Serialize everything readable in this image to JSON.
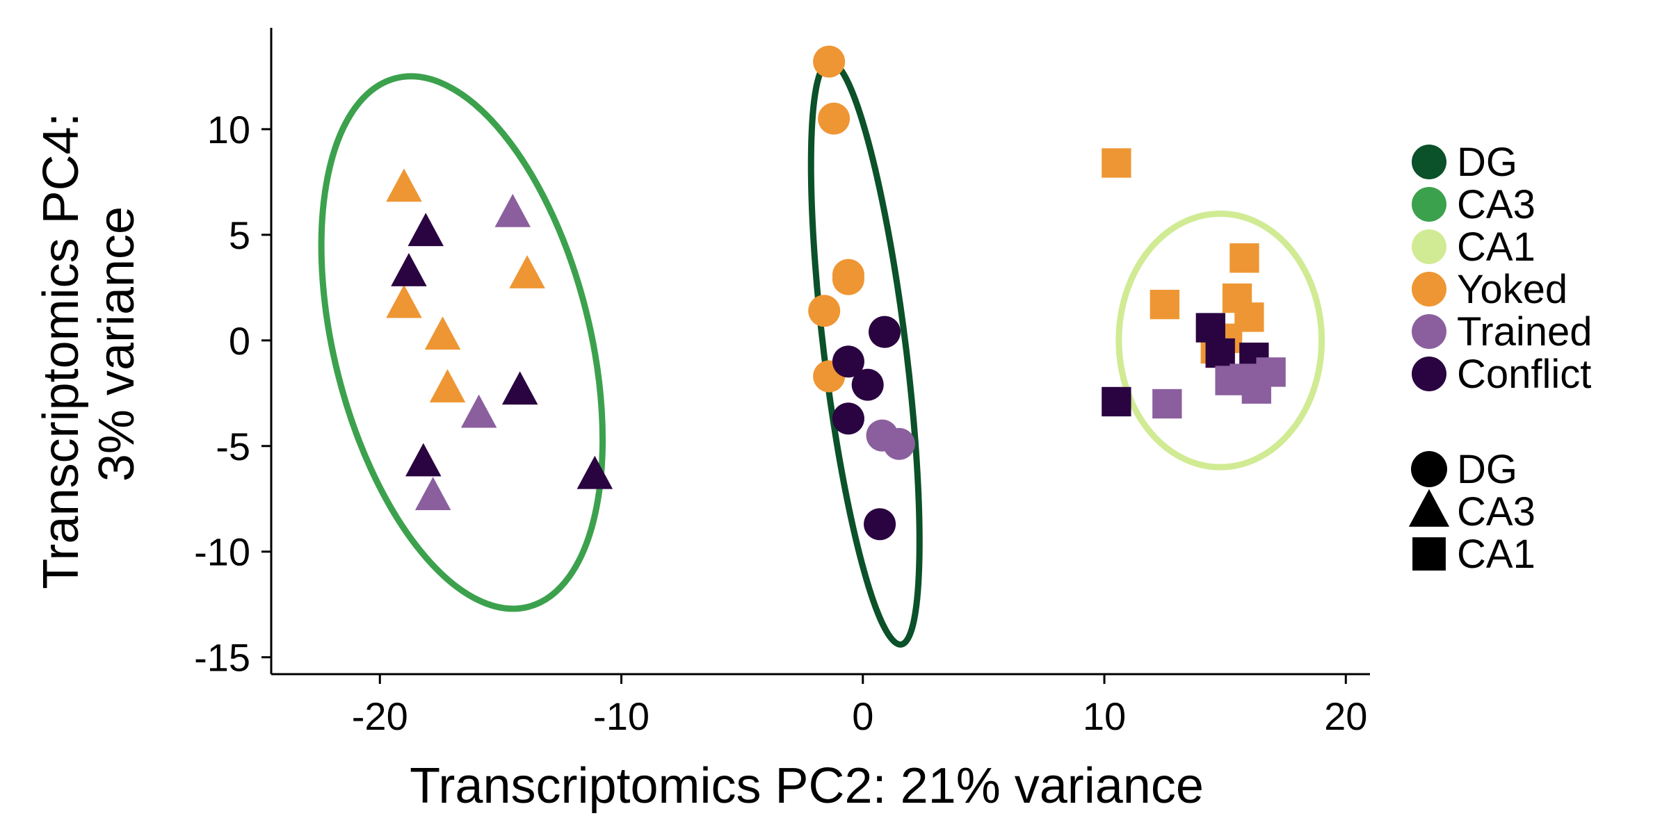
{
  "chart_data": {
    "type": "scatter",
    "title": "",
    "xlabel": "Transcriptomics PC2: 21% variance",
    "ylabel_lines": [
      "Transcriptomics PC4:",
      "3% variance"
    ],
    "xlim": [
      -24.5,
      21
    ],
    "ylim": [
      -15.8,
      14.8
    ],
    "xticks": [
      -20,
      -10,
      0,
      10,
      20
    ],
    "yticks": [
      10,
      5,
      0,
      -5,
      -10,
      -15
    ],
    "grid": false,
    "legend_position": "right",
    "colors": {
      "DG": "#0b5129",
      "CA3": "#3ca14d",
      "CA1": "#d0eb93",
      "Yoked": "#ee9633",
      "Trained": "#8b5f9e",
      "Conflict": "#2a0440"
    },
    "color_legend": [
      "DG",
      "CA3",
      "CA1",
      "Yoked",
      "Trained",
      "Conflict"
    ],
    "shape_legend": [
      {
        "label": "DG",
        "shape": "circle"
      },
      {
        "label": "CA3",
        "shape": "triangle"
      },
      {
        "label": "CA1",
        "shape": "square"
      }
    ],
    "ellipses": [
      {
        "group": "CA3",
        "cx": -16.6,
        "cy": -0.1,
        "rx": 5.3,
        "ry": 12.9,
        "angle_deg": -14
      },
      {
        "group": "DG",
        "cx": 0.1,
        "cy": -0.6,
        "rx": 1.7,
        "ry": 13.9,
        "angle_deg": -7
      },
      {
        "group": "CA1",
        "cx": 14.8,
        "cy": 0.0,
        "rx": 4.2,
        "ry": 6.0,
        "angle_deg": 0
      }
    ],
    "points": [
      {
        "x": -1.4,
        "y": 13.2,
        "group": "Yoked",
        "shape": "circle"
      },
      {
        "x": -1.2,
        "y": 10.5,
        "group": "Yoked",
        "shape": "circle"
      },
      {
        "x": -0.6,
        "y": 3.1,
        "group": "Yoked",
        "shape": "circle"
      },
      {
        "x": -0.6,
        "y": 2.9,
        "group": "Yoked",
        "shape": "circle"
      },
      {
        "x": -1.6,
        "y": 1.4,
        "group": "Yoked",
        "shape": "circle"
      },
      {
        "x": -1.4,
        "y": -1.7,
        "group": "Yoked",
        "shape": "circle"
      },
      {
        "x": 0.9,
        "y": 0.4,
        "group": "Conflict",
        "shape": "circle"
      },
      {
        "x": -0.6,
        "y": -1.0,
        "group": "Conflict",
        "shape": "circle"
      },
      {
        "x": 0.2,
        "y": -2.1,
        "group": "Conflict",
        "shape": "circle"
      },
      {
        "x": -0.6,
        "y": -3.7,
        "group": "Conflict",
        "shape": "circle"
      },
      {
        "x": 0.7,
        "y": -8.7,
        "group": "Conflict",
        "shape": "circle"
      },
      {
        "x": 0.8,
        "y": -4.5,
        "group": "Trained",
        "shape": "circle"
      },
      {
        "x": 1.5,
        "y": -4.9,
        "group": "Trained",
        "shape": "circle"
      },
      {
        "x": -19.0,
        "y": 7.2,
        "group": "Yoked",
        "shape": "triangle"
      },
      {
        "x": -19.0,
        "y": 1.7,
        "group": "Yoked",
        "shape": "triangle"
      },
      {
        "x": -17.4,
        "y": 0.2,
        "group": "Yoked",
        "shape": "triangle"
      },
      {
        "x": -17.2,
        "y": -2.3,
        "group": "Yoked",
        "shape": "triangle"
      },
      {
        "x": -13.9,
        "y": 3.1,
        "group": "Yoked",
        "shape": "triangle"
      },
      {
        "x": -18.1,
        "y": 5.1,
        "group": "Conflict",
        "shape": "triangle"
      },
      {
        "x": -18.8,
        "y": 3.2,
        "group": "Conflict",
        "shape": "triangle"
      },
      {
        "x": -14.2,
        "y": -2.4,
        "group": "Conflict",
        "shape": "triangle"
      },
      {
        "x": -18.2,
        "y": -5.8,
        "group": "Conflict",
        "shape": "triangle"
      },
      {
        "x": -11.1,
        "y": -6.4,
        "group": "Conflict",
        "shape": "triangle"
      },
      {
        "x": -14.5,
        "y": 6.0,
        "group": "Trained",
        "shape": "triangle"
      },
      {
        "x": -15.9,
        "y": -3.5,
        "group": "Trained",
        "shape": "triangle"
      },
      {
        "x": -17.8,
        "y": -7.4,
        "group": "Trained",
        "shape": "triangle"
      },
      {
        "x": 10.5,
        "y": 8.4,
        "group": "Yoked",
        "shape": "square"
      },
      {
        "x": 15.8,
        "y": 3.9,
        "group": "Yoked",
        "shape": "square"
      },
      {
        "x": 12.5,
        "y": 1.7,
        "group": "Yoked",
        "shape": "square"
      },
      {
        "x": 15.5,
        "y": 2.0,
        "group": "Yoked",
        "shape": "square"
      },
      {
        "x": 16.0,
        "y": 1.1,
        "group": "Yoked",
        "shape": "square"
      },
      {
        "x": 15.1,
        "y": 0.1,
        "group": "Yoked",
        "shape": "square"
      },
      {
        "x": 14.6,
        "y": -0.4,
        "group": "Yoked",
        "shape": "square"
      },
      {
        "x": 14.4,
        "y": 0.6,
        "group": "Conflict",
        "shape": "square"
      },
      {
        "x": 14.8,
        "y": -0.6,
        "group": "Conflict",
        "shape": "square"
      },
      {
        "x": 16.2,
        "y": -0.8,
        "group": "Conflict",
        "shape": "square"
      },
      {
        "x": 10.5,
        "y": -2.9,
        "group": "Conflict",
        "shape": "square"
      },
      {
        "x": 12.6,
        "y": -3.0,
        "group": "Trained",
        "shape": "square"
      },
      {
        "x": 15.2,
        "y": -1.9,
        "group": "Trained",
        "shape": "square"
      },
      {
        "x": 15.8,
        "y": -1.8,
        "group": "Trained",
        "shape": "square"
      },
      {
        "x": 16.3,
        "y": -2.3,
        "group": "Trained",
        "shape": "square"
      },
      {
        "x": 16.9,
        "y": -1.5,
        "group": "Trained",
        "shape": "square"
      }
    ]
  }
}
